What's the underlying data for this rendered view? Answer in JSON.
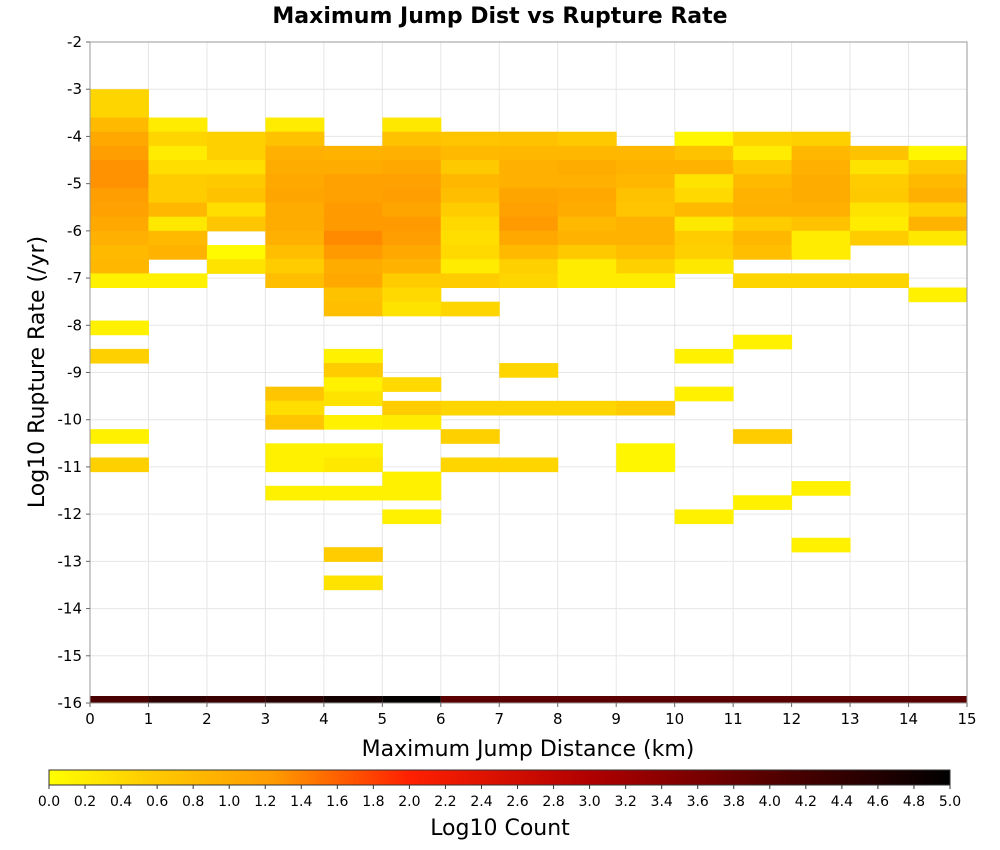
{
  "chart_data": {
    "type": "heatmap",
    "title": "Maximum Jump Dist vs Rupture Rate",
    "xlabel": "Maximum Jump Distance (km)",
    "ylabel": "Log10 Rupture Rate (/yr)",
    "xlim": [
      0,
      15
    ],
    "ylim": [
      -16,
      -2
    ],
    "x_ticks": [
      "0",
      "1",
      "2",
      "3",
      "4",
      "5",
      "6",
      "7",
      "8",
      "9",
      "10",
      "11",
      "12",
      "13",
      "14",
      "15"
    ],
    "y_ticks": [
      "-2",
      "-3",
      "-4",
      "-5",
      "-6",
      "-7",
      "-8",
      "-9",
      "-10",
      "-11",
      "-12",
      "-13",
      "-14",
      "-15",
      "-16"
    ],
    "cell_width_km": 1,
    "cell_height_log10": 0.3,
    "colorbar": {
      "label": "Log10 Count",
      "range": [
        0.0,
        5.0
      ],
      "ticks": [
        "0.0",
        "0.2",
        "0.4",
        "0.6",
        "0.8",
        "1.0",
        "1.2",
        "1.4",
        "1.6",
        "1.8",
        "2.0",
        "2.2",
        "2.4",
        "2.6",
        "2.8",
        "3.0",
        "3.2",
        "3.4",
        "3.6",
        "3.8",
        "4.0",
        "4.2",
        "4.4",
        "4.6",
        "4.8",
        "5.0"
      ],
      "colors": [
        "#ffff00",
        "#ffa000",
        "#ff2000",
        "#c00000",
        "#600000",
        "#000000"
      ]
    },
    "cells": [
      {
        "x": 0,
        "y": -3.15,
        "v": 0.45
      },
      {
        "x": 0,
        "y": -3.45,
        "v": 0.45
      },
      {
        "x": 0,
        "y": -3.75,
        "v": 0.8
      },
      {
        "x": 0,
        "y": -4.05,
        "v": 1.05
      },
      {
        "x": 0,
        "y": -4.35,
        "v": 1.2
      },
      {
        "x": 0,
        "y": -4.65,
        "v": 1.3
      },
      {
        "x": 0,
        "y": -4.95,
        "v": 1.3
      },
      {
        "x": 0,
        "y": -5.25,
        "v": 1.2
      },
      {
        "x": 0,
        "y": -5.55,
        "v": 1.15
      },
      {
        "x": 0,
        "y": -5.85,
        "v": 1.05
      },
      {
        "x": 0,
        "y": -6.15,
        "v": 0.95
      },
      {
        "x": 0,
        "y": -6.45,
        "v": 0.8
      },
      {
        "x": 0,
        "y": -6.75,
        "v": 0.85
      },
      {
        "x": 0,
        "y": -7.05,
        "v": 0.15
      },
      {
        "x": 0,
        "y": -8.05,
        "v": 0.15
      },
      {
        "x": 0,
        "y": -8.65,
        "v": 0.5
      },
      {
        "x": 0,
        "y": -10.35,
        "v": 0.15
      },
      {
        "x": 0,
        "y": -10.95,
        "v": 0.5
      },
      {
        "x": 1,
        "y": -3.75,
        "v": 0.2
      },
      {
        "x": 1,
        "y": -4.05,
        "v": 0.45
      },
      {
        "x": 1,
        "y": -4.35,
        "v": 0.2
      },
      {
        "x": 1,
        "y": -4.65,
        "v": 0.35
      },
      {
        "x": 1,
        "y": -4.95,
        "v": 0.55
      },
      {
        "x": 1,
        "y": -5.25,
        "v": 0.55
      },
      {
        "x": 1,
        "y": -5.55,
        "v": 0.85
      },
      {
        "x": 1,
        "y": -5.85,
        "v": 0.25
      },
      {
        "x": 1,
        "y": -6.15,
        "v": 0.8
      },
      {
        "x": 1,
        "y": -6.45,
        "v": 0.9
      },
      {
        "x": 1,
        "y": -7.05,
        "v": 0.15
      },
      {
        "x": 2,
        "y": -4.05,
        "v": 0.5
      },
      {
        "x": 2,
        "y": -4.35,
        "v": 0.5
      },
      {
        "x": 2,
        "y": -4.65,
        "v": 0.35
      },
      {
        "x": 2,
        "y": -4.95,
        "v": 0.6
      },
      {
        "x": 2,
        "y": -5.25,
        "v": 0.7
      },
      {
        "x": 2,
        "y": -5.55,
        "v": 0.35
      },
      {
        "x": 2,
        "y": -5.85,
        "v": 0.65
      },
      {
        "x": 2,
        "y": -6.45,
        "v": 0.05
      },
      {
        "x": 2,
        "y": -6.75,
        "v": 0.3
      },
      {
        "x": 3,
        "y": -3.75,
        "v": 0.2
      },
      {
        "x": 3,
        "y": -4.05,
        "v": 0.7
      },
      {
        "x": 3,
        "y": -4.35,
        "v": 0.95
      },
      {
        "x": 3,
        "y": -4.65,
        "v": 1.0
      },
      {
        "x": 3,
        "y": -4.95,
        "v": 1.05
      },
      {
        "x": 3,
        "y": -5.25,
        "v": 1.1
      },
      {
        "x": 3,
        "y": -5.55,
        "v": 1.0
      },
      {
        "x": 3,
        "y": -5.85,
        "v": 1.0
      },
      {
        "x": 3,
        "y": -6.15,
        "v": 0.95
      },
      {
        "x": 3,
        "y": -6.45,
        "v": 0.75
      },
      {
        "x": 3,
        "y": -6.75,
        "v": 0.55
      },
      {
        "x": 3,
        "y": -7.05,
        "v": 0.75
      },
      {
        "x": 3,
        "y": -9.45,
        "v": 0.65
      },
      {
        "x": 3,
        "y": -9.75,
        "v": 0.35
      },
      {
        "x": 3,
        "y": -10.05,
        "v": 0.65
      },
      {
        "x": 3,
        "y": -10.65,
        "v": 0.15
      },
      {
        "x": 3,
        "y": -10.95,
        "v": 0.15
      },
      {
        "x": 3,
        "y": -11.55,
        "v": 0.15
      },
      {
        "x": 4,
        "y": -4.35,
        "v": 0.9
      },
      {
        "x": 4,
        "y": -4.65,
        "v": 1.0
      },
      {
        "x": 4,
        "y": -4.95,
        "v": 1.15
      },
      {
        "x": 4,
        "y": -5.25,
        "v": 1.15
      },
      {
        "x": 4,
        "y": -5.55,
        "v": 1.25
      },
      {
        "x": 4,
        "y": -5.85,
        "v": 1.25
      },
      {
        "x": 4,
        "y": -6.15,
        "v": 1.35
      },
      {
        "x": 4,
        "y": -6.45,
        "v": 1.25
      },
      {
        "x": 4,
        "y": -6.75,
        "v": 1.0
      },
      {
        "x": 4,
        "y": -7.05,
        "v": 1.05
      },
      {
        "x": 4,
        "y": -7.35,
        "v": 0.7
      },
      {
        "x": 4,
        "y": -7.65,
        "v": 0.75
      },
      {
        "x": 4,
        "y": -8.65,
        "v": 0.15
      },
      {
        "x": 4,
        "y": -8.95,
        "v": 0.55
      },
      {
        "x": 4,
        "y": -9.25,
        "v": 0.15
      },
      {
        "x": 4,
        "y": -9.55,
        "v": 0.3
      },
      {
        "x": 4,
        "y": -10.05,
        "v": 0.15
      },
      {
        "x": 4,
        "y": -10.65,
        "v": 0.15
      },
      {
        "x": 4,
        "y": -10.95,
        "v": 0.25
      },
      {
        "x": 4,
        "y": -11.55,
        "v": 0.15
      },
      {
        "x": 4,
        "y": -12.85,
        "v": 0.55
      },
      {
        "x": 4,
        "y": -13.45,
        "v": 0.3
      },
      {
        "x": 5,
        "y": -3.75,
        "v": 0.25
      },
      {
        "x": 5,
        "y": -4.05,
        "v": 0.7
      },
      {
        "x": 5,
        "y": -4.35,
        "v": 0.95
      },
      {
        "x": 5,
        "y": -4.65,
        "v": 1.05
      },
      {
        "x": 5,
        "y": -4.95,
        "v": 1.15
      },
      {
        "x": 5,
        "y": -5.25,
        "v": 1.2
      },
      {
        "x": 5,
        "y": -5.55,
        "v": 1.1
      },
      {
        "x": 5,
        "y": -5.85,
        "v": 1.25
      },
      {
        "x": 5,
        "y": -6.15,
        "v": 1.2
      },
      {
        "x": 5,
        "y": -6.45,
        "v": 1.05
      },
      {
        "x": 5,
        "y": -6.75,
        "v": 0.9
      },
      {
        "x": 5,
        "y": -7.05,
        "v": 0.55
      },
      {
        "x": 5,
        "y": -7.35,
        "v": 0.4
      },
      {
        "x": 5,
        "y": -7.65,
        "v": 0.3
      },
      {
        "x": 5,
        "y": -9.25,
        "v": 0.4
      },
      {
        "x": 5,
        "y": -9.75,
        "v": 0.55
      },
      {
        "x": 5,
        "y": -10.05,
        "v": 0.2
      },
      {
        "x": 5,
        "y": -11.25,
        "v": 0.15
      },
      {
        "x": 5,
        "y": -11.55,
        "v": 0.15
      },
      {
        "x": 5,
        "y": -12.05,
        "v": 0.15
      },
      {
        "x": 6,
        "y": -4.05,
        "v": 0.65
      },
      {
        "x": 6,
        "y": -4.35,
        "v": 0.8
      },
      {
        "x": 6,
        "y": -4.65,
        "v": 0.6
      },
      {
        "x": 6,
        "y": -4.95,
        "v": 0.85
      },
      {
        "x": 6,
        "y": -5.25,
        "v": 0.75
      },
      {
        "x": 6,
        "y": -5.55,
        "v": 0.55
      },
      {
        "x": 6,
        "y": -5.85,
        "v": 0.4
      },
      {
        "x": 6,
        "y": -6.15,
        "v": 0.35
      },
      {
        "x": 6,
        "y": -6.45,
        "v": 0.4
      },
      {
        "x": 6,
        "y": -6.75,
        "v": 0.2
      },
      {
        "x": 6,
        "y": -7.05,
        "v": 0.55
      },
      {
        "x": 6,
        "y": -7.65,
        "v": 0.45
      },
      {
        "x": 6,
        "y": -9.75,
        "v": 0.45
      },
      {
        "x": 6,
        "y": -10.35,
        "v": 0.5
      },
      {
        "x": 6,
        "y": -10.95,
        "v": 0.45
      },
      {
        "x": 7,
        "y": -4.05,
        "v": 0.7
      },
      {
        "x": 7,
        "y": -4.35,
        "v": 0.85
      },
      {
        "x": 7,
        "y": -4.65,
        "v": 0.95
      },
      {
        "x": 7,
        "y": -4.95,
        "v": 0.95
      },
      {
        "x": 7,
        "y": -5.25,
        "v": 1.1
      },
      {
        "x": 7,
        "y": -5.55,
        "v": 1.15
      },
      {
        "x": 7,
        "y": -5.85,
        "v": 1.25
      },
      {
        "x": 7,
        "y": -6.15,
        "v": 1.05
      },
      {
        "x": 7,
        "y": -6.45,
        "v": 0.8
      },
      {
        "x": 7,
        "y": -6.75,
        "v": 0.5
      },
      {
        "x": 7,
        "y": -7.05,
        "v": 0.45
      },
      {
        "x": 7,
        "y": -8.95,
        "v": 0.45
      },
      {
        "x": 7,
        "y": -9.75,
        "v": 0.45
      },
      {
        "x": 7,
        "y": -10.95,
        "v": 0.45
      },
      {
        "x": 8,
        "y": -4.05,
        "v": 0.6
      },
      {
        "x": 8,
        "y": -4.35,
        "v": 0.85
      },
      {
        "x": 8,
        "y": -4.65,
        "v": 1.0
      },
      {
        "x": 8,
        "y": -4.95,
        "v": 0.95
      },
      {
        "x": 8,
        "y": -5.25,
        "v": 1.05
      },
      {
        "x": 8,
        "y": -5.55,
        "v": 1.0
      },
      {
        "x": 8,
        "y": -5.85,
        "v": 0.8
      },
      {
        "x": 8,
        "y": -6.15,
        "v": 0.9
      },
      {
        "x": 8,
        "y": -6.45,
        "v": 0.6
      },
      {
        "x": 8,
        "y": -6.75,
        "v": 0.2
      },
      {
        "x": 8,
        "y": -7.05,
        "v": 0.2
      },
      {
        "x": 8,
        "y": -9.75,
        "v": 0.45
      },
      {
        "x": 9,
        "y": -4.35,
        "v": 0.85
      },
      {
        "x": 9,
        "y": -4.65,
        "v": 0.9
      },
      {
        "x": 9,
        "y": -4.95,
        "v": 0.85
      },
      {
        "x": 9,
        "y": -5.25,
        "v": 0.7
      },
      {
        "x": 9,
        "y": -5.55,
        "v": 0.65
      },
      {
        "x": 9,
        "y": -5.85,
        "v": 0.9
      },
      {
        "x": 9,
        "y": -6.15,
        "v": 0.9
      },
      {
        "x": 9,
        "y": -6.45,
        "v": 0.75
      },
      {
        "x": 9,
        "y": -6.75,
        "v": 0.5
      },
      {
        "x": 9,
        "y": -7.05,
        "v": 0.2
      },
      {
        "x": 9,
        "y": -9.75,
        "v": 0.55
      },
      {
        "x": 9,
        "y": -10.65,
        "v": 0.1
      },
      {
        "x": 9,
        "y": -10.95,
        "v": 0.1
      },
      {
        "x": 10,
        "y": -4.05,
        "v": 0.1
      },
      {
        "x": 10,
        "y": -4.35,
        "v": 0.7
      },
      {
        "x": 10,
        "y": -4.65,
        "v": 0.9
      },
      {
        "x": 10,
        "y": -4.95,
        "v": 0.3
      },
      {
        "x": 10,
        "y": -5.25,
        "v": 0.4
      },
      {
        "x": 10,
        "y": -5.55,
        "v": 0.8
      },
      {
        "x": 10,
        "y": -5.85,
        "v": 0.25
      },
      {
        "x": 10,
        "y": -6.15,
        "v": 0.55
      },
      {
        "x": 10,
        "y": -6.45,
        "v": 0.5
      },
      {
        "x": 10,
        "y": -6.75,
        "v": 0.25
      },
      {
        "x": 10,
        "y": -8.65,
        "v": 0.15
      },
      {
        "x": 10,
        "y": -9.45,
        "v": 0.15
      },
      {
        "x": 10,
        "y": -12.05,
        "v": 0.15
      },
      {
        "x": 11,
        "y": -4.05,
        "v": 0.45
      },
      {
        "x": 11,
        "y": -4.35,
        "v": 0.2
      },
      {
        "x": 11,
        "y": -4.65,
        "v": 0.6
      },
      {
        "x": 11,
        "y": -4.95,
        "v": 0.8
      },
      {
        "x": 11,
        "y": -5.25,
        "v": 0.9
      },
      {
        "x": 11,
        "y": -5.55,
        "v": 0.95
      },
      {
        "x": 11,
        "y": -5.85,
        "v": 0.55
      },
      {
        "x": 11,
        "y": -6.15,
        "v": 0.85
      },
      {
        "x": 11,
        "y": -6.45,
        "v": 0.75
      },
      {
        "x": 11,
        "y": -7.05,
        "v": 0.45
      },
      {
        "x": 11,
        "y": -8.35,
        "v": 0.15
      },
      {
        "x": 11,
        "y": -10.35,
        "v": 0.55
      },
      {
        "x": 11,
        "y": -11.75,
        "v": 0.15
      },
      {
        "x": 12,
        "y": -4.05,
        "v": 0.5
      },
      {
        "x": 12,
        "y": -4.35,
        "v": 0.85
      },
      {
        "x": 12,
        "y": -4.65,
        "v": 0.95
      },
      {
        "x": 12,
        "y": -4.95,
        "v": 1.0
      },
      {
        "x": 12,
        "y": -5.25,
        "v": 1.0
      },
      {
        "x": 12,
        "y": -5.55,
        "v": 0.95
      },
      {
        "x": 12,
        "y": -5.85,
        "v": 0.7
      },
      {
        "x": 12,
        "y": -6.15,
        "v": 0.2
      },
      {
        "x": 12,
        "y": -6.45,
        "v": 0.2
      },
      {
        "x": 12,
        "y": -7.05,
        "v": 0.45
      },
      {
        "x": 12,
        "y": -11.45,
        "v": 0.15
      },
      {
        "x": 12,
        "y": -12.65,
        "v": 0.15
      },
      {
        "x": 13,
        "y": -4.35,
        "v": 0.7
      },
      {
        "x": 13,
        "y": -4.65,
        "v": 0.3
      },
      {
        "x": 13,
        "y": -4.95,
        "v": 0.55
      },
      {
        "x": 13,
        "y": -5.25,
        "v": 0.6
      },
      {
        "x": 13,
        "y": -5.55,
        "v": 0.3
      },
      {
        "x": 13,
        "y": -5.85,
        "v": 0.2
      },
      {
        "x": 13,
        "y": -6.15,
        "v": 0.55
      },
      {
        "x": 13,
        "y": -7.05,
        "v": 0.45
      },
      {
        "x": 14,
        "y": -4.35,
        "v": 0.1
      },
      {
        "x": 14,
        "y": -4.65,
        "v": 0.6
      },
      {
        "x": 14,
        "y": -4.95,
        "v": 0.8
      },
      {
        "x": 14,
        "y": -5.25,
        "v": 0.95
      },
      {
        "x": 14,
        "y": -5.55,
        "v": 0.5
      },
      {
        "x": 14,
        "y": -5.85,
        "v": 0.9
      },
      {
        "x": 14,
        "y": -6.15,
        "v": 0.25
      },
      {
        "x": 14,
        "y": -7.35,
        "v": 0.15
      }
    ],
    "baseline_strip": [
      {
        "x0": 0,
        "x1": 1,
        "color": "#4a0000"
      },
      {
        "x0": 1,
        "x1": 2,
        "color": "#300000"
      },
      {
        "x0": 2,
        "x1": 3,
        "color": "#3a0000"
      },
      {
        "x0": 3,
        "x1": 4,
        "color": "#2a0000"
      },
      {
        "x0": 4,
        "x1": 5,
        "color": "#150000"
      },
      {
        "x0": 5,
        "x1": 6,
        "color": "#050000"
      },
      {
        "x0": 6,
        "x1": 15,
        "color": "#5a0000"
      }
    ]
  }
}
